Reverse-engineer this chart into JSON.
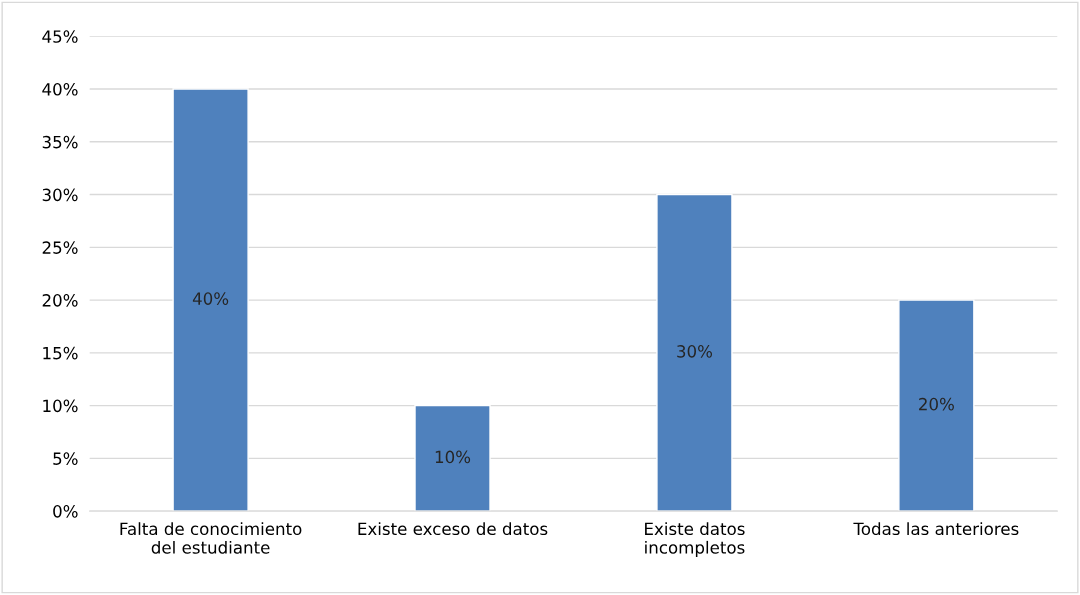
{
  "chart_data": {
    "type": "bar",
    "categories": [
      "Falta de conocimiento del estudiante",
      "Existe exceso de datos",
      "Existe datos incompletos",
      "Todas las anteriores"
    ],
    "values": [
      40,
      10,
      30,
      20
    ],
    "value_labels": [
      "40%",
      "10%",
      "30%",
      "20%"
    ],
    "color": "#4f81bd",
    "ylim": [
      0,
      45
    ],
    "yticks": [
      {
        "value": 0,
        "label": "0%"
      },
      {
        "value": 5,
        "label": "5%"
      },
      {
        "value": 10,
        "label": "10%"
      },
      {
        "value": 15,
        "label": "15%"
      },
      {
        "value": 20,
        "label": "20%"
      },
      {
        "value": 25,
        "label": "25%"
      },
      {
        "value": 30,
        "label": "30%"
      },
      {
        "value": 35,
        "label": "35%"
      },
      {
        "value": 40,
        "label": "40%"
      },
      {
        "value": 45,
        "label": "45%"
      }
    ],
    "grid": "y"
  }
}
